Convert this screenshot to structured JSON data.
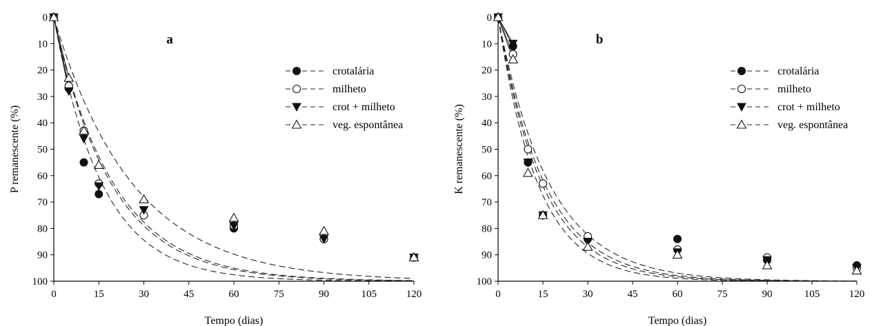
{
  "chart_data": [
    {
      "type": "scatter",
      "panel_label": "a",
      "xlabel": "Tempo (dias)",
      "ylabel": "P remanescente (%)",
      "xlim": [
        0,
        120
      ],
      "ylim": [
        0,
        100
      ],
      "y_inverted": true,
      "xticks": [
        0,
        15,
        30,
        45,
        60,
        75,
        90,
        105,
        120
      ],
      "yticks": [
        0,
        10,
        20,
        30,
        40,
        50,
        60,
        70,
        80,
        90,
        100
      ],
      "legend_position": "top-right",
      "grid": false,
      "x": [
        0,
        5,
        10,
        15,
        30,
        60,
        90,
        120
      ],
      "series": [
        {
          "name": "crotalária",
          "marker": "filled-circle",
          "values": [
            0,
            27,
            55,
            67,
            75,
            80,
            84,
            91
          ],
          "fit_k": 0.062
        },
        {
          "name": "milheto",
          "marker": "open-circle",
          "values": [
            0,
            26,
            43,
            63,
            75,
            79,
            84,
            91
          ],
          "fit_k": 0.052
        },
        {
          "name": "crot + milheto",
          "marker": "filled-triangle-down",
          "values": [
            0,
            28,
            46,
            64,
            73,
            79,
            84,
            91
          ],
          "fit_k": 0.05
        },
        {
          "name": "veg. espontânea",
          "marker": "open-triangle-up",
          "values": [
            0,
            23,
            43,
            56,
            69,
            76,
            81,
            91
          ],
          "fit_k": 0.038
        }
      ]
    },
    {
      "type": "scatter",
      "panel_label": "b",
      "xlabel": "Tempo (dias)",
      "ylabel": "K remanescente (%)",
      "xlim": [
        0,
        120
      ],
      "ylim": [
        0,
        100
      ],
      "y_inverted": true,
      "xticks": [
        0,
        15,
        30,
        45,
        60,
        75,
        90,
        105,
        120
      ],
      "yticks": [
        0,
        10,
        20,
        30,
        40,
        50,
        60,
        70,
        80,
        90,
        100
      ],
      "legend_position": "top-right",
      "grid": false,
      "x": [
        0,
        5,
        10,
        15,
        30,
        60,
        90,
        120
      ],
      "series": [
        {
          "name": "crotalária",
          "marker": "filled-circle",
          "values": [
            0,
            11,
            55,
            75,
            84,
            84,
            92,
            94
          ],
          "fit_k": 0.068
        },
        {
          "name": "milheto",
          "marker": "open-circle",
          "values": [
            0,
            14,
            50,
            63,
            83,
            88,
            91,
            95
          ],
          "fit_k": 0.058
        },
        {
          "name": "crot + milheto",
          "marker": "filled-triangle-down",
          "values": [
            0,
            10,
            55,
            75,
            85,
            89,
            92,
            95
          ],
          "fit_k": 0.064
        },
        {
          "name": "veg. espontânea",
          "marker": "open-triangle-up",
          "values": [
            0,
            16,
            59,
            75,
            87,
            90,
            94,
            96
          ],
          "fit_k": 0.075
        }
      ]
    }
  ]
}
